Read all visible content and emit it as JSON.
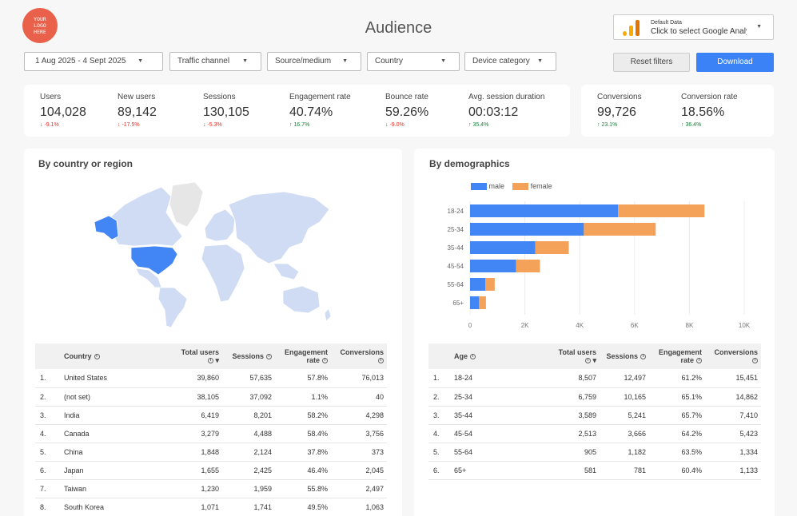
{
  "logo": {
    "text": "YOUR LOGO HERE"
  },
  "page_title": "Audience",
  "data_source": {
    "label": "Default Data",
    "value": "Click to select Google Analytics"
  },
  "filters": {
    "date_range": "1 Aug 2025 - 4 Sept 2025",
    "traffic_channel": "Traffic channel",
    "source_medium": "Source/medium",
    "country": "Country",
    "device_category": "Device category"
  },
  "buttons": {
    "reset": "Reset filters",
    "download": "Download"
  },
  "kpis": [
    {
      "label": "Users",
      "value": "104,028",
      "delta": "↓ -9.1%",
      "dir": "down"
    },
    {
      "label": "New users",
      "value": "89,142",
      "delta": "↓ -17.5%",
      "dir": "down"
    },
    {
      "label": "Sessions",
      "value": "130,105",
      "delta": "↓ -5.3%",
      "dir": "down"
    },
    {
      "label": "Engagement rate",
      "value": "40.74%",
      "delta": "↑ 16.7%",
      "dir": "up"
    },
    {
      "label": "Bounce rate",
      "value": "59.26%",
      "delta": "↓ -9.0%",
      "dir": "down"
    },
    {
      "label": "Avg. session duration",
      "value": "00:03:12",
      "delta": "↑ 35.4%",
      "dir": "up"
    }
  ],
  "conv_kpis": [
    {
      "label": "Conversions",
      "value": "99,726",
      "delta": "↑ 23.1%",
      "dir": "up"
    },
    {
      "label": "Conversion rate",
      "value": "18.56%",
      "delta": "↑ 36.4%",
      "dir": "up"
    }
  ],
  "country_section": {
    "title": "By country or region",
    "headers": {
      "rank": "",
      "country": "Country",
      "users": "Total users",
      "sessions": "Sessions",
      "engagement": "Engagement rate",
      "conversions": "Conversions"
    },
    "rows": [
      {
        "rank": "1.",
        "country": "United States",
        "users": "39,860",
        "sessions": "57,635",
        "engagement": "57.8%",
        "conversions": "76,013"
      },
      {
        "rank": "2.",
        "country": "(not set)",
        "users": "38,105",
        "sessions": "37,092",
        "engagement": "1.1%",
        "conversions": "40"
      },
      {
        "rank": "3.",
        "country": "India",
        "users": "6,419",
        "sessions": "8,201",
        "engagement": "58.2%",
        "conversions": "4,298"
      },
      {
        "rank": "4.",
        "country": "Canada",
        "users": "3,279",
        "sessions": "4,488",
        "engagement": "58.4%",
        "conversions": "3,756"
      },
      {
        "rank": "5.",
        "country": "China",
        "users": "1,848",
        "sessions": "2,124",
        "engagement": "37.8%",
        "conversions": "373"
      },
      {
        "rank": "6.",
        "country": "Japan",
        "users": "1,655",
        "sessions": "2,425",
        "engagement": "46.4%",
        "conversions": "2,045"
      },
      {
        "rank": "7.",
        "country": "Taiwan",
        "users": "1,230",
        "sessions": "1,959",
        "engagement": "55.8%",
        "conversions": "2,497"
      },
      {
        "rank": "8.",
        "country": "South Korea",
        "users": "1,071",
        "sessions": "1,741",
        "engagement": "49.5%",
        "conversions": "1,063"
      }
    ]
  },
  "demo_section": {
    "title": "By demographics",
    "headers": {
      "rank": "",
      "age": "Age",
      "users": "Total users",
      "sessions": "Sessions",
      "engagement": "Engagement rate",
      "conversions": "Conversions"
    },
    "rows": [
      {
        "rank": "1.",
        "age": "18-24",
        "users": "8,507",
        "sessions": "12,497",
        "engagement": "61.2%",
        "conversions": "15,451"
      },
      {
        "rank": "2.",
        "age": "25-34",
        "users": "6,759",
        "sessions": "10,165",
        "engagement": "65.1%",
        "conversions": "14,862"
      },
      {
        "rank": "3.",
        "age": "35-44",
        "users": "3,589",
        "sessions": "5,241",
        "engagement": "65.7%",
        "conversions": "7,410"
      },
      {
        "rank": "4.",
        "age": "45-54",
        "users": "2,513",
        "sessions": "3,666",
        "engagement": "64.2%",
        "conversions": "5,423"
      },
      {
        "rank": "5.",
        "age": "55-64",
        "users": "905",
        "sessions": "1,182",
        "engagement": "63.5%",
        "conversions": "1,334"
      },
      {
        "rank": "6.",
        "age": "65+",
        "users": "581",
        "sessions": "781",
        "engagement": "60.4%",
        "conversions": "1,133"
      }
    ]
  },
  "chart_data": {
    "type": "bar",
    "orientation": "horizontal",
    "stacked": true,
    "categories": [
      "18-24",
      "25-34",
      "35-44",
      "45-54",
      "55-64",
      "65+"
    ],
    "series": [
      {
        "name": "male",
        "color": "#4285f4",
        "values": [
          5400,
          4150,
          2380,
          1680,
          560,
          330
        ]
      },
      {
        "name": "female",
        "color": "#f4a259",
        "values": [
          3150,
          2620,
          1220,
          870,
          340,
          250
        ]
      }
    ],
    "x_ticks": [
      "0",
      "2K",
      "4K",
      "6K",
      "8K",
      "10K"
    ],
    "xlim": [
      0,
      10000
    ],
    "legend_position": "top-left",
    "grid": true
  },
  "colors": {
    "accent": "#3b82f6",
    "logo": "#e9614a",
    "highlight_country": "#4285f4",
    "land": "#cfdcf3",
    "no_data": "#e6e6e6"
  }
}
